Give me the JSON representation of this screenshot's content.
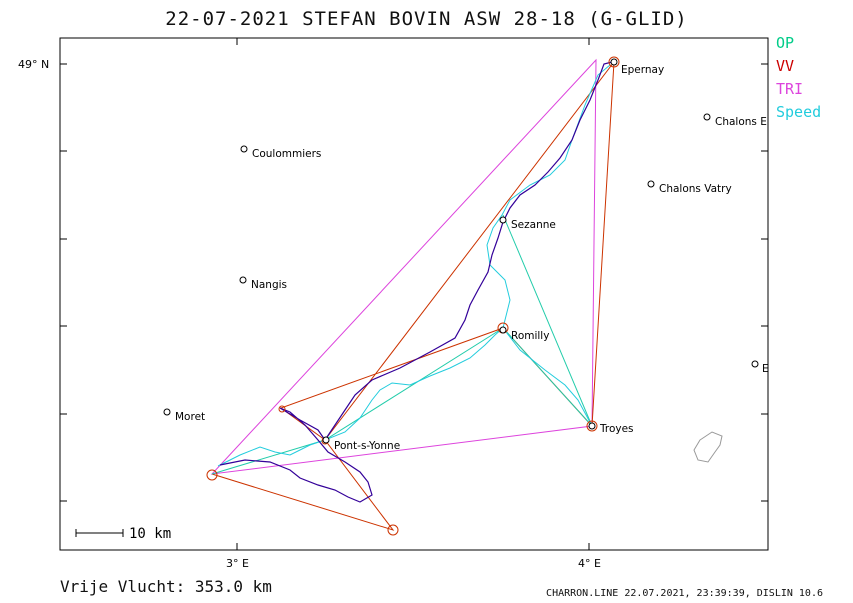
{
  "title": "22-07-2021   STEFAN BOVIN   ASW 28-18 (G-GLID)",
  "legend": [
    {
      "label": "OP",
      "color": "#00cc88"
    },
    {
      "label": "VV",
      "color": "#cc0000"
    },
    {
      "label": "TRI",
      "color": "#dd44dd"
    },
    {
      "label": "Speed",
      "color": "#22ccdd"
    }
  ],
  "axes": {
    "lat_label": "49° N",
    "lon_labels": [
      "3° E",
      "4° E"
    ]
  },
  "scale_label": "10 km",
  "towns": [
    "Epernay",
    "Chalons E",
    "Coulommiers",
    "Chalons Vatry",
    "Sezanne",
    "Nangis",
    "Romilly",
    "E",
    "Moret",
    "Troyes",
    "Pont-s-Yonne"
  ],
  "footer": {
    "distance": "Vrije Vlucht:  353.0 km",
    "info": "CHARRON.LINE 22.07.2021, 23:39:39, DISLIN 10.6"
  }
}
